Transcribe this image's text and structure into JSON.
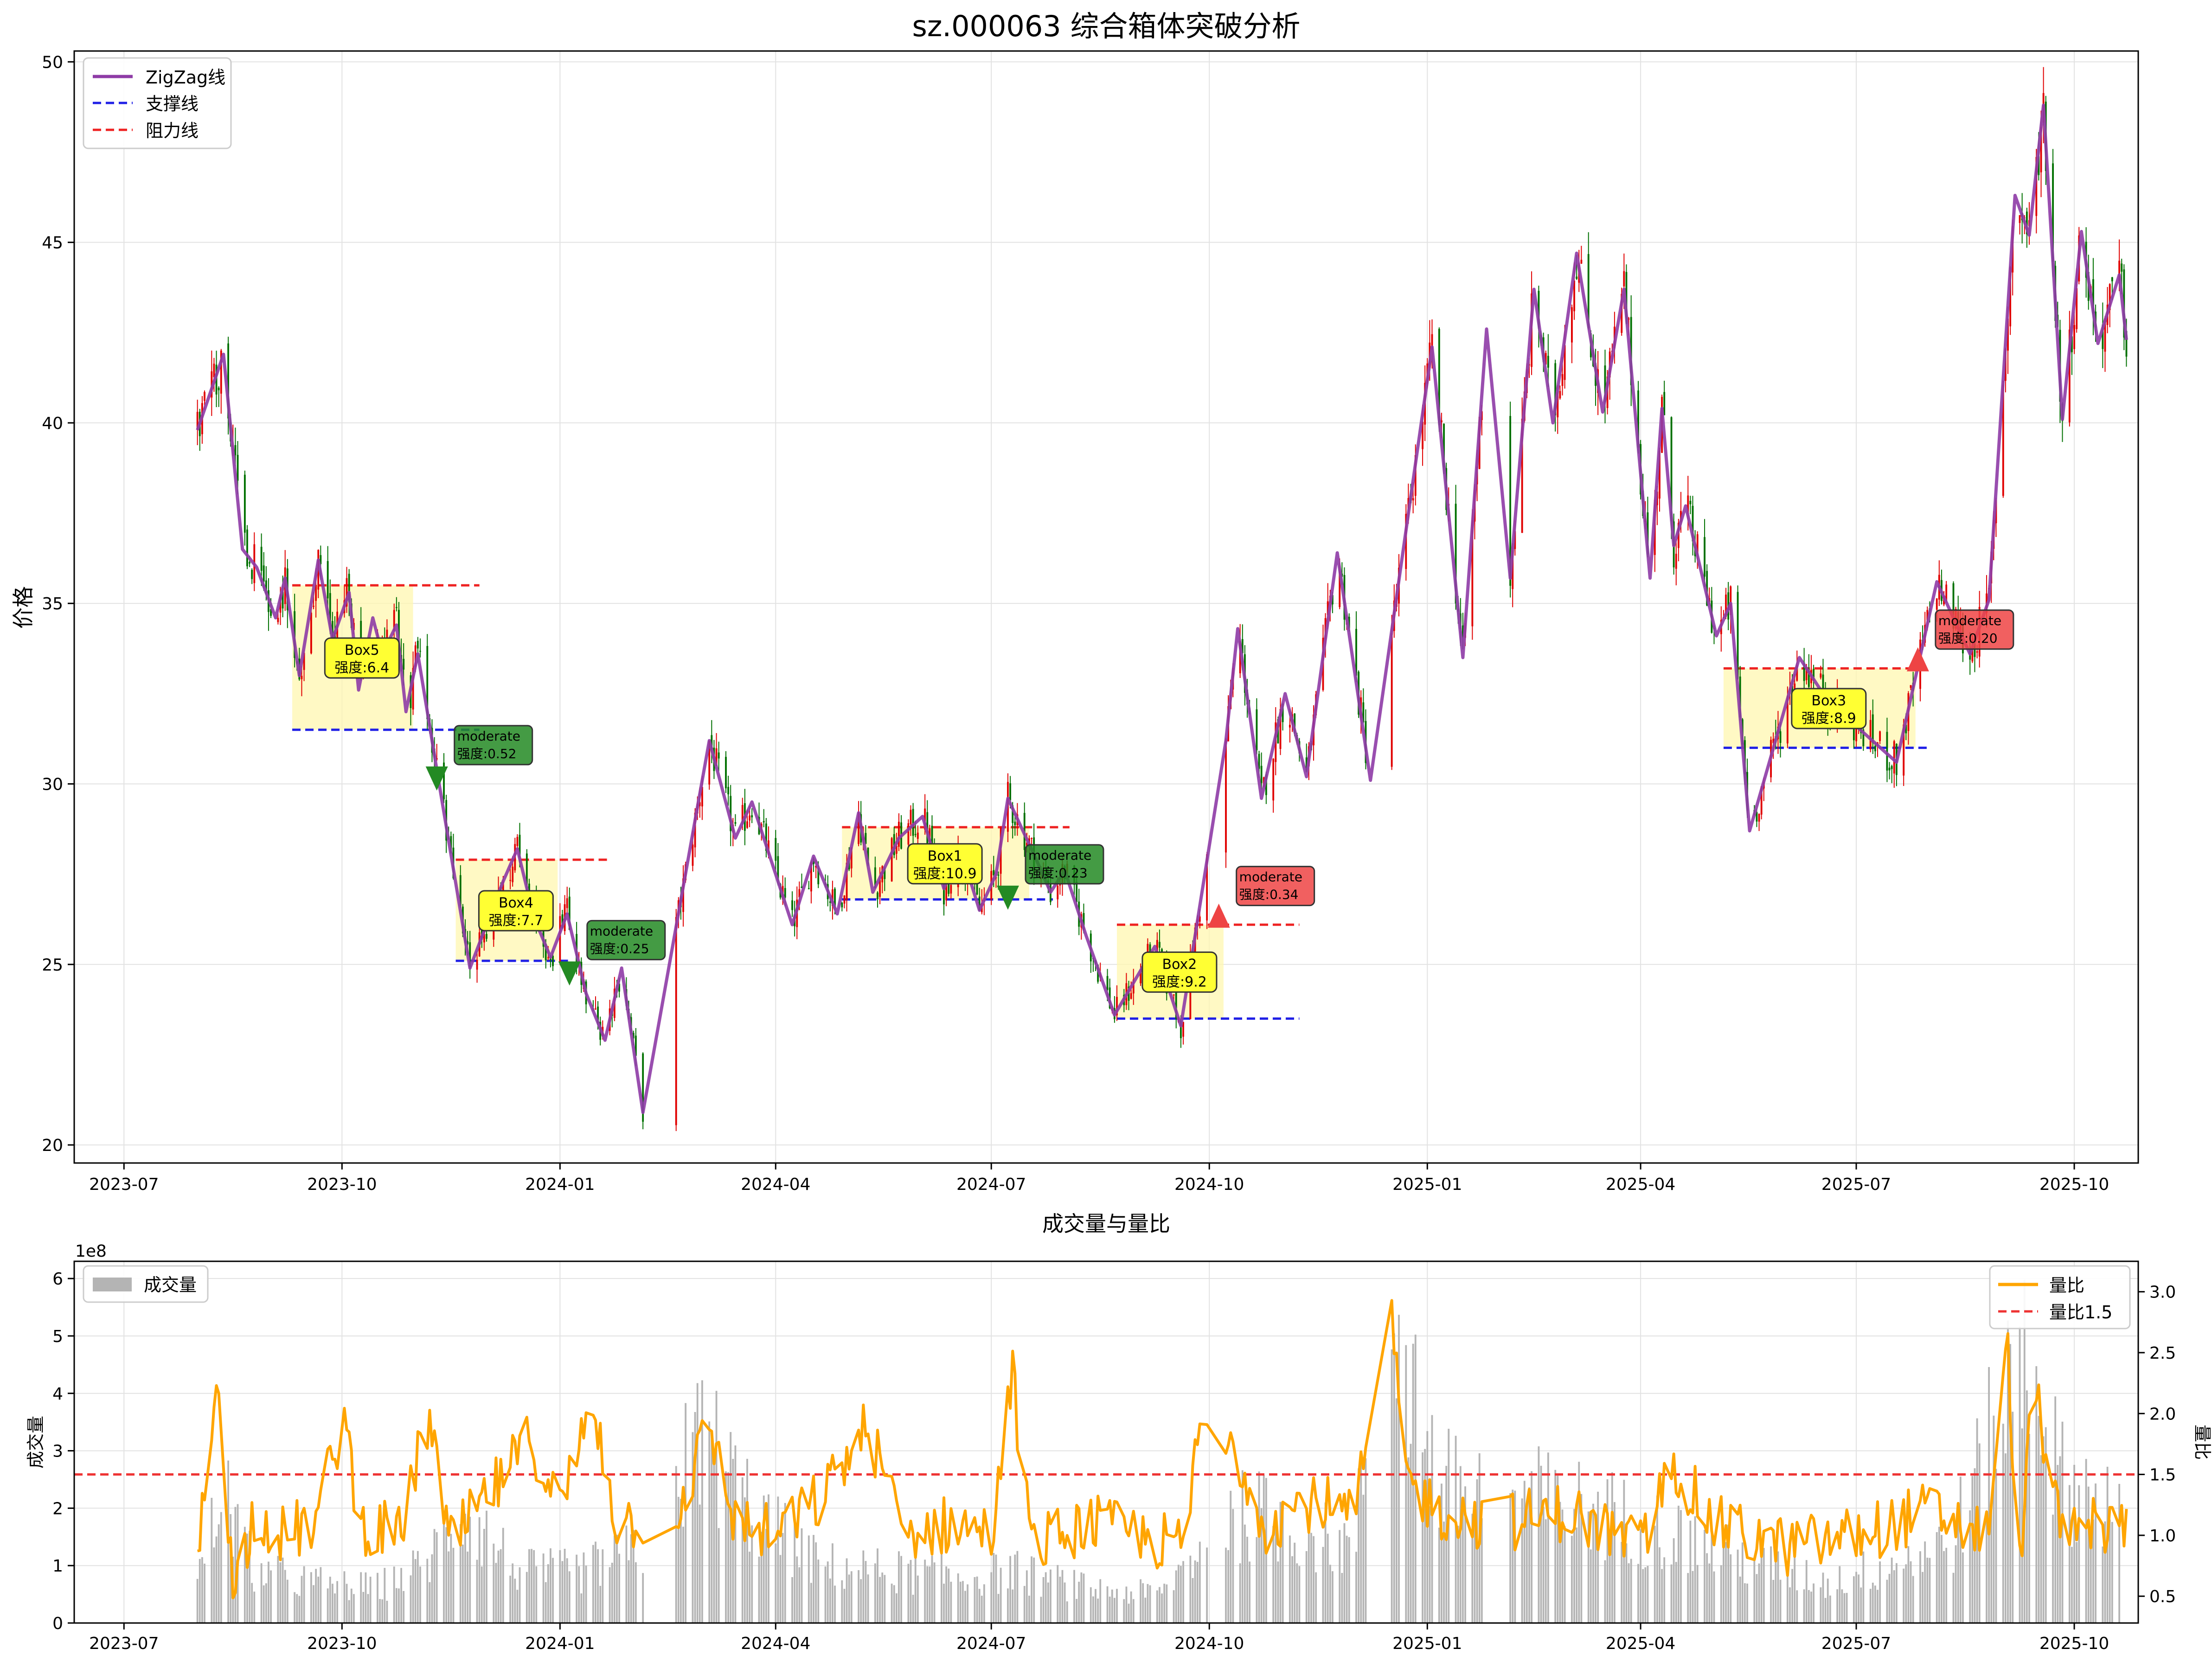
{
  "colors": {
    "zigzag": "#8e3ba6",
    "support": "#1f1fe6",
    "resistance": "#ee2222",
    "candle_up": "#e00000",
    "candle_down": "#007000",
    "box_fill": "#fff7b0",
    "box_label": "#ffff33",
    "break_down": "#238a23",
    "break_up": "#ee4444",
    "volume": "#b4b4b4",
    "volume_ratio": "#ffa500",
    "threshold": "#ee3333",
    "grid": "#e2e2e2"
  },
  "chart_data": [
    {
      "type": "candlestick",
      "title": "sz.000063 综合箱体突破分析",
      "ylabel": "价格",
      "xlabel": "",
      "ylim": [
        19.5,
        50.3
      ],
      "x_range": [
        "2023-06-10",
        "2025-10-28"
      ],
      "x_ticks": [
        "2023-07",
        "2023-10",
        "2024-01",
        "2024-04",
        "2024-07",
        "2024-10",
        "2025-01",
        "2025-04",
        "2025-07",
        "2025-10"
      ],
      "y_ticks": [
        20,
        25,
        30,
        35,
        40,
        45,
        50
      ],
      "grid": true,
      "legend": {
        "position": "top-left",
        "entries": [
          {
            "label": "ZigZag线",
            "color": "zigzag",
            "style": "solid"
          },
          {
            "label": "支撑线",
            "color": "support",
            "style": "dashed"
          },
          {
            "label": "阻力线",
            "color": "resistance",
            "style": "dashed"
          }
        ]
      },
      "zigzag": [
        [
          "2023-08-01",
          39.8
        ],
        [
          "2023-08-12",
          41.9
        ],
        [
          "2023-08-20",
          36.5
        ],
        [
          "2023-08-26",
          36.0
        ],
        [
          "2023-09-03",
          34.6
        ],
        [
          "2023-09-07",
          35.7
        ],
        [
          "2023-09-13",
          33.0
        ],
        [
          "2023-09-21",
          36.2
        ],
        [
          "2023-09-27",
          34.0
        ],
        [
          "2023-10-04",
          35.3
        ],
        [
          "2023-10-08",
          32.6
        ],
        [
          "2023-10-14",
          34.6
        ],
        [
          "2023-10-18",
          33.6
        ],
        [
          "2023-10-24",
          34.4
        ],
        [
          "2023-10-28",
          32.0
        ],
        [
          "2023-11-02",
          33.6
        ],
        [
          "2023-11-11",
          30.0
        ],
        [
          "2023-11-24",
          24.9
        ],
        [
          "2023-12-08",
          27.3
        ],
        [
          "2023-12-14",
          28.2
        ],
        [
          "2023-12-21",
          26.3
        ],
        [
          "2023-12-28",
          25.2
        ],
        [
          "2024-01-04",
          26.4
        ],
        [
          "2024-01-12",
          24.2
        ],
        [
          "2024-01-20",
          22.9
        ],
        [
          "2024-01-27",
          24.9
        ],
        [
          "2024-02-05",
          20.9
        ],
        [
          "2024-03-04",
          31.2
        ],
        [
          "2024-03-15",
          28.5
        ],
        [
          "2024-03-22",
          29.5
        ],
        [
          "2024-04-08",
          26.1
        ],
        [
          "2024-04-17",
          28.0
        ],
        [
          "2024-04-27",
          26.4
        ],
        [
          "2024-05-06",
          29.2
        ],
        [
          "2024-05-12",
          27.0
        ],
        [
          "2024-05-23",
          28.5
        ],
        [
          "2024-06-02",
          29.1
        ],
        [
          "2024-06-11",
          27.1
        ],
        [
          "2024-06-18",
          28.2
        ],
        [
          "2024-06-26",
          26.5
        ],
        [
          "2024-07-03",
          27.5
        ],
        [
          "2024-07-08",
          29.6
        ],
        [
          "2024-07-20",
          27.9
        ],
        [
          "2024-07-26",
          27.0
        ],
        [
          "2024-08-01",
          27.6
        ],
        [
          "2024-08-10",
          25.8
        ],
        [
          "2024-08-22",
          23.6
        ],
        [
          "2024-09-08",
          25.5
        ],
        [
          "2024-09-19",
          23.3
        ],
        [
          "2024-10-08",
          31.2
        ],
        [
          "2024-10-13",
          34.3
        ],
        [
          "2024-10-23",
          29.6
        ],
        [
          "2024-11-02",
          32.5
        ],
        [
          "2024-11-11",
          30.2
        ],
        [
          "2024-11-24",
          36.4
        ],
        [
          "2024-12-08",
          30.1
        ],
        [
          "2025-01-03",
          42.1
        ],
        [
          "2025-01-16",
          33.5
        ],
        [
          "2025-01-26",
          42.6
        ],
        [
          "2025-02-05",
          35.7
        ],
        [
          "2025-02-15",
          43.7
        ],
        [
          "2025-02-23",
          40.0
        ],
        [
          "2025-03-05",
          44.7
        ],
        [
          "2025-03-16",
          40.3
        ],
        [
          "2025-03-25",
          43.7
        ],
        [
          "2025-04-05",
          35.7
        ],
        [
          "2025-04-10",
          40.4
        ],
        [
          "2025-04-15",
          36.6
        ],
        [
          "2025-04-20",
          37.7
        ],
        [
          "2025-05-03",
          34.1
        ],
        [
          "2025-05-09",
          35.0
        ],
        [
          "2025-05-17",
          28.7
        ],
        [
          "2025-06-07",
          33.5
        ],
        [
          "2025-06-21",
          32.1
        ],
        [
          "2025-07-01",
          31.6
        ],
        [
          "2025-07-18",
          30.6
        ],
        [
          "2025-08-04",
          35.6
        ],
        [
          "2025-08-18",
          33.6
        ],
        [
          "2025-08-26",
          35.1
        ],
        [
          "2025-09-06",
          46.3
        ],
        [
          "2025-09-12",
          45.2
        ],
        [
          "2025-09-18",
          48.8
        ],
        [
          "2025-09-26",
          40.1
        ],
        [
          "2025-10-04",
          45.3
        ],
        [
          "2025-10-11",
          42.2
        ],
        [
          "2025-10-20",
          44.1
        ],
        [
          "2025-10-23",
          42.3
        ]
      ],
      "boxes": [
        {
          "label": "Box5",
          "strength": "强度:6.4",
          "start": "2023-09-10",
          "end": "2023-10-31",
          "low": 31.5,
          "high": 35.5,
          "support_end": "2023-11-28",
          "resistance_end": "2023-11-28"
        },
        {
          "label": "Box4",
          "strength": "强度:7.7",
          "start": "2023-11-18",
          "end": "2023-12-31",
          "low": 25.1,
          "high": 27.9,
          "support_end": "2024-01-05",
          "resistance_end": "2024-01-21"
        },
        {
          "label": "Box1",
          "strength": "强度:10.9",
          "start": "2024-04-29",
          "end": "2024-07-17",
          "low": 26.8,
          "high": 28.8,
          "support_end": "2024-07-27",
          "resistance_end": "2024-08-03"
        },
        {
          "label": "Box2",
          "strength": "强度:9.2",
          "start": "2024-08-23",
          "end": "2024-10-07",
          "low": 23.5,
          "high": 26.1,
          "support_end": "2024-11-08",
          "resistance_end": "2024-11-08"
        },
        {
          "label": "Box3",
          "strength": "强度:8.9",
          "start": "2025-05-06",
          "end": "2025-07-26",
          "low": 31.0,
          "high": 33.2,
          "support_end": "2025-08-01",
          "resistance_end": "2025-08-01"
        }
      ],
      "breakouts": [
        {
          "direction": "down",
          "quality": "moderate",
          "strength": "强度:0.52",
          "date": "2023-11-10",
          "price": 30.2
        },
        {
          "direction": "down",
          "quality": "moderate",
          "strength": "强度:0.25",
          "date": "2024-01-05",
          "price": 24.8
        },
        {
          "direction": "down",
          "quality": "moderate",
          "strength": "强度:0.23",
          "date": "2024-07-08",
          "price": 26.9
        },
        {
          "direction": "up",
          "quality": "moderate",
          "strength": "强度:0.34",
          "date": "2024-10-05",
          "price": 26.3
        },
        {
          "direction": "up",
          "quality": "moderate",
          "strength": "强度:0.20",
          "date": "2025-07-27",
          "price": 33.4
        }
      ]
    },
    {
      "type": "bar",
      "title": "成交量与量比",
      "ylabel": "成交量",
      "ylabel_right": "量比",
      "y_offset_label": "1e8",
      "ylim": [
        0,
        6.3
      ],
      "ylim_right": [
        0.28,
        3.25
      ],
      "y_ticks": [
        0,
        1,
        2,
        3,
        4,
        5,
        6
      ],
      "y_ticks_right": [
        0.5,
        1.0,
        1.5,
        2.0,
        2.5,
        3.0
      ],
      "x_ticks": [
        "2023-07",
        "2023-10",
        "2024-01",
        "2024-04",
        "2024-07",
        "2024-10",
        "2025-01",
        "2025-04",
        "2025-07",
        "2025-10"
      ],
      "threshold": 1.5,
      "grid": true,
      "legend_left": {
        "position": "top-left",
        "entries": [
          {
            "label": "成交量",
            "color": "volume"
          }
        ]
      },
      "legend_right": {
        "position": "top-right",
        "entries": [
          {
            "label": "量比",
            "color": "volume_ratio",
            "style": "solid"
          },
          {
            "label": "量比1.5",
            "color": "threshold",
            "style": "dashed"
          }
        ]
      },
      "volume_anchors": [
        [
          "2023-08-01",
          0.75
        ],
        [
          "2023-08-12",
          2.3
        ],
        [
          "2023-08-25",
          0.9
        ],
        [
          "2023-09-20",
          0.7
        ],
        [
          "2023-10-15",
          0.6
        ],
        [
          "2023-11-05",
          1.0
        ],
        [
          "2023-11-20",
          2.0
        ],
        [
          "2023-12-15",
          0.9
        ],
        [
          "2024-01-10",
          0.9
        ],
        [
          "2024-02-05",
          1.3
        ],
        [
          "2024-03-01",
          3.3
        ],
        [
          "2024-03-25",
          1.8
        ],
        [
          "2024-04-20",
          1.0
        ],
        [
          "2024-05-20",
          0.9
        ],
        [
          "2024-06-20",
          0.8
        ],
        [
          "2024-07-10",
          0.9
        ],
        [
          "2024-08-10",
          0.6
        ],
        [
          "2024-09-10",
          0.5
        ],
        [
          "2024-10-08",
          1.8
        ],
        [
          "2024-10-20",
          1.9
        ],
        [
          "2024-11-10",
          1.6
        ],
        [
          "2024-12-01",
          1.3
        ],
        [
          "2024-12-16",
          6.0
        ],
        [
          "2025-01-05",
          2.4
        ],
        [
          "2025-02-10",
          2.2
        ],
        [
          "2025-03-10",
          2.0
        ],
        [
          "2025-04-10",
          1.6
        ],
        [
          "2025-05-15",
          1.1
        ],
        [
          "2025-06-20",
          0.7
        ],
        [
          "2025-07-20",
          1.1
        ],
        [
          "2025-08-10",
          1.4
        ],
        [
          "2025-08-30",
          3.5
        ],
        [
          "2025-09-12",
          5.0
        ],
        [
          "2025-09-25",
          2.5
        ],
        [
          "2025-10-20",
          2.0
        ]
      ],
      "ratio_anchors": [
        [
          "2023-08-01",
          0.8
        ],
        [
          "2023-08-10",
          2.4
        ],
        [
          "2023-08-16",
          0.5
        ],
        [
          "2023-08-25",
          1.2
        ],
        [
          "2023-09-05",
          1.0
        ],
        [
          "2023-09-20",
          1.1
        ],
        [
          "2023-10-02",
          2.0
        ],
        [
          "2023-10-08",
          1.1
        ],
        [
          "2023-10-25",
          1.0
        ],
        [
          "2023-11-07",
          2.0
        ],
        [
          "2023-11-15",
          0.9
        ],
        [
          "2023-12-05",
          1.4
        ],
        [
          "2023-12-20",
          1.8
        ],
        [
          "2024-01-01",
          1.2
        ],
        [
          "2024-01-15",
          2.1
        ],
        [
          "2024-01-25",
          1.1
        ],
        [
          "2024-02-20",
          1.2
        ],
        [
          "2024-03-04",
          1.9
        ],
        [
          "2024-03-15",
          1.1
        ],
        [
          "2024-04-01",
          1.0
        ],
        [
          "2024-04-20",
          1.3
        ],
        [
          "2024-05-10",
          1.9
        ],
        [
          "2024-05-25",
          1.0
        ],
        [
          "2024-06-15",
          1.1
        ],
        [
          "2024-07-01",
          1.0
        ],
        [
          "2024-07-10",
          2.3
        ],
        [
          "2024-07-18",
          0.9
        ],
        [
          "2024-08-10",
          1.1
        ],
        [
          "2024-09-01",
          1.0
        ],
        [
          "2024-09-20",
          0.9
        ],
        [
          "2024-09-28",
          2.0
        ],
        [
          "2024-10-05",
          1.7
        ],
        [
          "2024-10-12",
          1.7
        ],
        [
          "2024-10-25",
          1.1
        ],
        [
          "2024-11-15",
          1.3
        ],
        [
          "2024-12-01",
          1.1
        ],
        [
          "2024-12-16",
          3.0
        ],
        [
          "2024-12-22",
          1.5
        ],
        [
          "2025-01-05",
          1.2
        ],
        [
          "2025-02-01",
          1.1
        ],
        [
          "2025-03-01",
          1.2
        ],
        [
          "2025-04-01",
          0.9
        ],
        [
          "2025-04-15",
          1.6
        ],
        [
          "2025-05-01",
          1.1
        ],
        [
          "2025-06-01",
          0.9
        ],
        [
          "2025-07-01",
          1.0
        ],
        [
          "2025-08-01",
          1.2
        ],
        [
          "2025-08-25",
          1.0
        ],
        [
          "2025-09-03",
          2.5
        ],
        [
          "2025-09-08",
          0.7
        ],
        [
          "2025-09-14",
          2.3
        ],
        [
          "2025-09-25",
          1.0
        ],
        [
          "2025-10-10",
          1.1
        ],
        [
          "2025-10-23",
          1.0
        ]
      ]
    }
  ]
}
